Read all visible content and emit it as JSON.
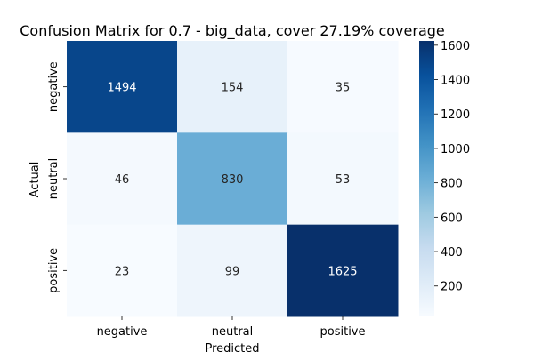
{
  "chart_data": {
    "type": "heatmap",
    "title": "Confusion Matrix for 0.7 - big_data, cover 27.19% coverage",
    "xlabel": "Predicted",
    "ylabel": "Actual",
    "x_categories": [
      "negative",
      "neutral",
      "positive"
    ],
    "y_categories": [
      "negative",
      "neutral",
      "positive"
    ],
    "values": [
      [
        1494,
        154,
        35
      ],
      [
        46,
        830,
        53
      ],
      [
        23,
        99,
        1625
      ]
    ],
    "colormap": "Blues",
    "color_range": [
      23,
      1625
    ],
    "colorbar": {
      "ticks": [
        200,
        400,
        600,
        800,
        1000,
        1200,
        1400,
        1600
      ],
      "tick_labels": [
        "200",
        "400",
        "600",
        "800",
        "1000",
        "1200",
        "1400",
        "1600"
      ]
    },
    "grid": false,
    "legend": "colorbar-right"
  }
}
